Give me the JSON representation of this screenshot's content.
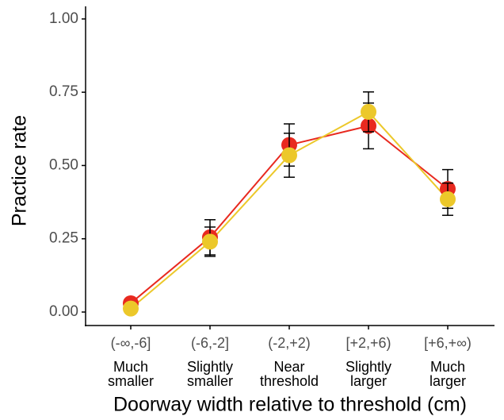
{
  "chart_data": {
    "type": "line",
    "x_label": "Doorway width relative to threshold (cm)",
    "y_label": "Practice rate",
    "categories": [
      "(-∞,-6]",
      "(-6,-2]",
      "(-2,+2)",
      "[+2,+6)",
      "[+6,+∞)"
    ],
    "category_descriptions": [
      [
        "Much",
        "smaller"
      ],
      [
        "Slightly",
        "smaller"
      ],
      [
        "Near",
        "threshold"
      ],
      [
        "Slightly",
        "larger"
      ],
      [
        "Much",
        "larger"
      ]
    ],
    "series": [
      {
        "color": "#e8291f",
        "values": [
          0.03,
          0.255,
          0.57,
          0.635,
          0.42
        ],
        "errors": [
          0.01,
          0.06,
          0.072,
          0.078,
          0.066
        ]
      },
      {
        "color": "#ecc82a",
        "values": [
          0.012,
          0.24,
          0.535,
          0.683,
          0.385
        ],
        "errors": [
          0.008,
          0.05,
          0.075,
          0.068,
          0.055
        ]
      }
    ],
    "ylim": [
      -0.046,
      1.043
    ],
    "yticks": [
      {
        "value": 0,
        "label": "0.00"
      },
      {
        "value": 0.25,
        "label": "0.25"
      },
      {
        "value": 0.5,
        "label": "0.50"
      },
      {
        "value": 0.75,
        "label": "0.75"
      },
      {
        "value": 1,
        "label": "1.00"
      }
    ]
  }
}
